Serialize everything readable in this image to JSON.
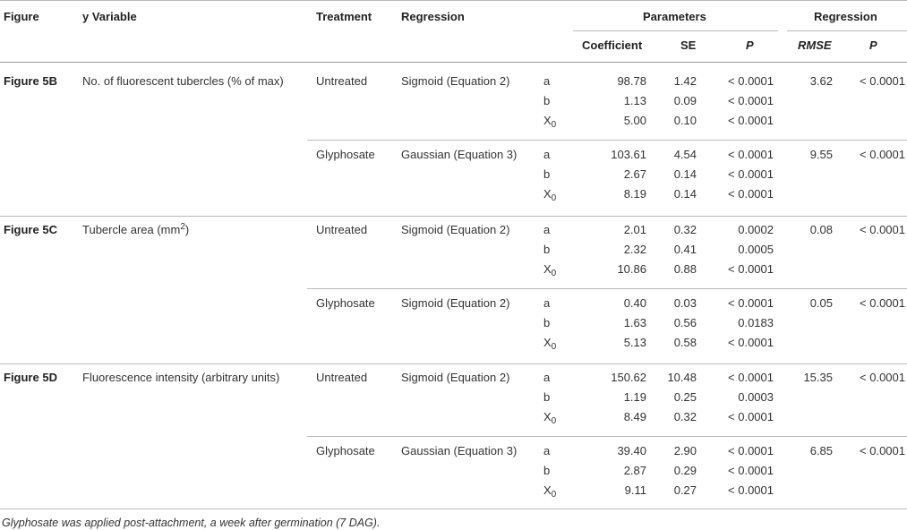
{
  "header": {
    "figure": "Figure",
    "y_variable": "y Variable",
    "treatment": "Treatment",
    "regression": "Regression",
    "parameters": "Parameters",
    "regression_stats": "Regression",
    "coefficient": "Coefficient",
    "se": "SE",
    "p": "P",
    "rmse": "RMSE",
    "p2": "P"
  },
  "groups": [
    {
      "figure": "Figure 5B",
      "y_variable": "No. of fluorescent tubercles (% of max)",
      "y_sup": "",
      "y_suffix": "",
      "blocks": [
        {
          "treatment": "Untreated",
          "regression": "Sigmoid (Equation 2)",
          "rmse": "3.62",
          "p": "< 0.0001",
          "rows": [
            {
              "param": "a",
              "coef": "98.78",
              "se": "1.42",
              "p": "< 0.0001"
            },
            {
              "param": "b",
              "coef": "1.13",
              "se": "0.09",
              "p": "< 0.0001"
            },
            {
              "param": "X",
              "param_sub": "0",
              "coef": "5.00",
              "se": "0.10",
              "p": "< 0.0001"
            }
          ]
        },
        {
          "treatment": "Glyphosate",
          "regression": "Gaussian (Equation 3)",
          "rmse": "9.55",
          "p": "< 0.0001",
          "rows": [
            {
              "param": "a",
              "coef": "103.61",
              "se": "4.54",
              "p": "< 0.0001"
            },
            {
              "param": "b",
              "coef": "2.67",
              "se": "0.14",
              "p": "< 0.0001"
            },
            {
              "param": "X",
              "param_sub": "0",
              "coef": "8.19",
              "se": "0.14",
              "p": "< 0.0001"
            }
          ]
        }
      ]
    },
    {
      "figure": "Figure 5C",
      "y_variable": "Tubercle area (mm",
      "y_sup": "2",
      "y_suffix": ")",
      "blocks": [
        {
          "treatment": "Untreated",
          "regression": "Sigmoid (Equation 2)",
          "rmse": "0.08",
          "p": "< 0.0001",
          "rows": [
            {
              "param": "a",
              "coef": "2.01",
              "se": "0.32",
              "p": "0.0002"
            },
            {
              "param": "b",
              "coef": "2.32",
              "se": "0.41",
              "p": "0.0005"
            },
            {
              "param": "X",
              "param_sub": "0",
              "coef": "10.86",
              "se": "0.88",
              "p": "< 0.0001"
            }
          ]
        },
        {
          "treatment": "Glyphosate",
          "regression": "Sigmoid (Equation 2)",
          "rmse": "0.05",
          "p": "< 0.0001",
          "rows": [
            {
              "param": "a",
              "coef": "0.40",
              "se": "0.03",
              "p": "< 0.0001"
            },
            {
              "param": "b",
              "coef": "1.63",
              "se": "0.56",
              "p": "0.0183"
            },
            {
              "param": "X",
              "param_sub": "0",
              "coef": "5.13",
              "se": "0.58",
              "p": "< 0.0001"
            }
          ]
        }
      ]
    },
    {
      "figure": "Figure 5D",
      "y_variable": "Fluorescence intensity (arbitrary units)",
      "y_sup": "",
      "y_suffix": "",
      "blocks": [
        {
          "treatment": "Untreated",
          "regression": "Sigmoid (Equation 2)",
          "rmse": "15.35",
          "p": "< 0.0001",
          "rows": [
            {
              "param": "a",
              "coef": "150.62",
              "se": "10.48",
              "p": "< 0.0001"
            },
            {
              "param": "b",
              "coef": "1.19",
              "se": "0.25",
              "p": "0.0003"
            },
            {
              "param": "X",
              "param_sub": "0",
              "coef": "8.49",
              "se": "0.32",
              "p": "< 0.0001"
            }
          ]
        },
        {
          "treatment": "Glyphosate",
          "regression": "Gaussian (Equation 3)",
          "rmse": "6.85",
          "p": "< 0.0001",
          "rows": [
            {
              "param": "a",
              "coef": "39.40",
              "se": "2.90",
              "p": "< 0.0001"
            },
            {
              "param": "b",
              "coef": "2.87",
              "se": "0.29",
              "p": "< 0.0001"
            },
            {
              "param": "X",
              "param_sub": "0",
              "coef": "9.11",
              "se": "0.27",
              "p": "< 0.0001"
            }
          ]
        }
      ]
    }
  ],
  "footnote": "Glyphosate was applied post-attachment, a week after germination (7 DAG)."
}
